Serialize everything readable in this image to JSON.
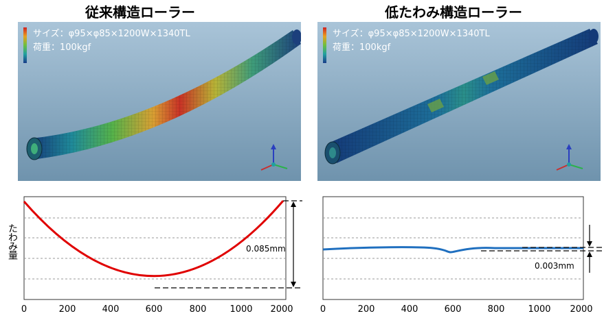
{
  "left": {
    "title": "従来構造ローラー",
    "spec_size": "サイズ：φ95×φ85×1200W×1340TL",
    "spec_load": "荷重：100kgf",
    "deflection_label": "0.085mm"
  },
  "right": {
    "title": "低たわみ構造ローラー",
    "spec_size": "サイズ：φ95×φ85×1200W×1340TL",
    "spec_load": "荷重：100kgf",
    "deflection_label": "0.003mm"
  },
  "y_axis_label": "たわみ量",
  "x_ticks": [
    "0",
    "200",
    "400",
    "600",
    "800",
    "1000",
    "2000"
  ],
  "colors": {
    "curve_left": "#e00000",
    "curve_right": "#1f6fbf",
    "render_bg": "#8fb3cc"
  }
}
